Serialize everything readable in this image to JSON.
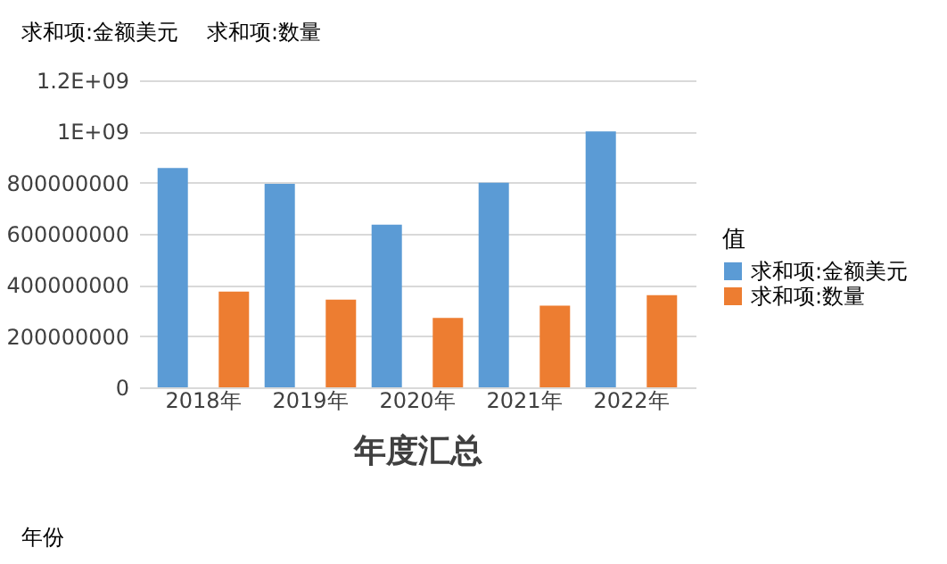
{
  "chart_data": {
    "type": "bar",
    "categories": [
      "2018年",
      "2019年",
      "2020年",
      "2021年",
      "2022年"
    ],
    "series": [
      {
        "name": "求和项:金额美元",
        "color": "#5b9bd5",
        "values": [
          857000000,
          795000000,
          636000000,
          800000000,
          1000000000
        ]
      },
      {
        "name": "求和项:数量",
        "color": "#ed7d31",
        "values": [
          374000000,
          343000000,
          271000000,
          319000000,
          360000000
        ]
      }
    ],
    "xlabel": "年度汇总",
    "legend_title": "值",
    "legend": "right",
    "ylim": [
      0,
      1200000000
    ],
    "yticks": [
      0,
      200000000,
      400000000,
      600000000,
      800000000,
      {
        "value": 1000000000,
        "label": "1E+09"
      },
      {
        "value": 1200000000,
        "label": "1.2E+09"
      }
    ],
    "grid": "y",
    "annotations": [
      "求和项:金额美元",
      "求和项:数量",
      "年份"
    ]
  }
}
